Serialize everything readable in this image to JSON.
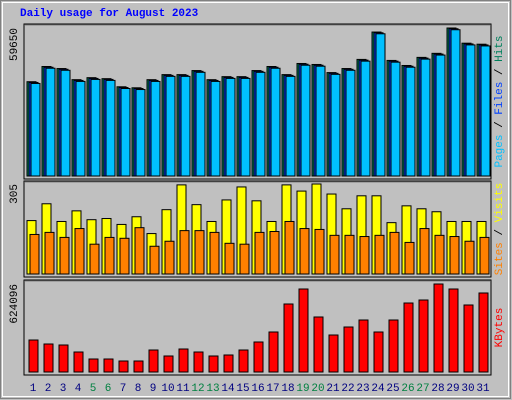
{
  "title": "Daily usage for August 2023",
  "chart_data": [
    {
      "type": "bar",
      "legend_separator": " / ",
      "ylim": [
        0,
        59650
      ],
      "yticks": [
        59650
      ],
      "series": [
        {
          "name": "Hits",
          "color": "#00805c",
          "values": [
            38000,
            44130,
            43310,
            38820,
            39630,
            39230,
            35960,
            35550,
            38820,
            40860,
            40860,
            42490,
            38820,
            40040,
            40040,
            42490,
            44130,
            40860,
            45350,
            44950,
            41680,
            43310,
            46990,
            58020,
            46580,
            44540,
            47810,
            49440,
            59650,
            53530,
            53120
          ]
        },
        {
          "name": "Files",
          "color": "#0040ff",
          "values": [
            37700,
            43830,
            43010,
            38520,
            39330,
            38930,
            35660,
            35250,
            38520,
            40560,
            40560,
            42190,
            38520,
            39740,
            39740,
            42190,
            43830,
            40560,
            45050,
            44650,
            41380,
            43010,
            46690,
            57720,
            46280,
            44240,
            47510,
            49140,
            59350,
            53230,
            52820
          ]
        },
        {
          "name": "Pages",
          "color": "#00c0ff",
          "values": [
            37300,
            43430,
            42610,
            38120,
            38930,
            38530,
            35260,
            34850,
            38120,
            40160,
            40160,
            41790,
            38120,
            39340,
            39340,
            41790,
            43430,
            40160,
            44650,
            44250,
            40980,
            42610,
            46290,
            57320,
            45880,
            43840,
            47110,
            48740,
            58950,
            52830,
            52420
          ]
        }
      ]
    },
    {
      "type": "bar",
      "legend_separator": " / ",
      "ylim": [
        0,
        305
      ],
      "yticks": [
        305
      ],
      "series": [
        {
          "name": "Visits",
          "color": "#ffff00",
          "values": [
            181,
            238,
            178,
            214,
            184,
            188,
            168,
            194,
            137,
            218,
            302,
            235,
            178,
            251,
            295,
            248,
            178,
            302,
            281,
            305,
            271,
            221,
            265,
            265,
            174,
            231,
            221,
            211,
            178,
            178,
            178
          ]
        },
        {
          "name": "Sites",
          "color": "#ff8000",
          "values": [
            134,
            141,
            124,
            154,
            101,
            124,
            121,
            157,
            94,
            111,
            147,
            147,
            141,
            104,
            101,
            141,
            144,
            178,
            154,
            151,
            131,
            131,
            127,
            131,
            141,
            107,
            154,
            131,
            127,
            111,
            124
          ]
        }
      ]
    },
    {
      "type": "bar",
      "ylim": [
        0,
        624096
      ],
      "yticks": [
        624096
      ],
      "categories": [
        "1",
        "2",
        "3",
        "4",
        "5",
        "6",
        "7",
        "8",
        "9",
        "10",
        "11",
        "12",
        "13",
        "14",
        "15",
        "16",
        "17",
        "18",
        "19",
        "20",
        "21",
        "22",
        "23",
        "24",
        "25",
        "26",
        "27",
        "28",
        "29",
        "30",
        "31"
      ],
      "category_colors": [
        "#000080",
        "#000080",
        "#000080",
        "#000080",
        "#008040",
        "#008040",
        "#000080",
        "#000080",
        "#000080",
        "#000080",
        "#000080",
        "#008040",
        "#008040",
        "#000080",
        "#000080",
        "#000080",
        "#000080",
        "#000080",
        "#008040",
        "#008040",
        "#000080",
        "#000080",
        "#000080",
        "#000080",
        "#000080",
        "#008040",
        "#008040",
        "#000080",
        "#000080",
        "#000080",
        "#000080"
      ],
      "series": [
        {
          "name": "KBytes",
          "color": "#ff0000",
          "values": [
            226900,
            198600,
            191500,
            141800,
            92200,
            92200,
            78000,
            78000,
            156000,
            113500,
            163100,
            141800,
            113500,
            120600,
            156000,
            212800,
            283700,
            482300,
            588600,
            390100,
            262400,
            319100,
            368800,
            283700,
            368800,
            489300,
            510600,
            624096,
            588600,
            475200,
            560300
          ]
        }
      ]
    }
  ]
}
